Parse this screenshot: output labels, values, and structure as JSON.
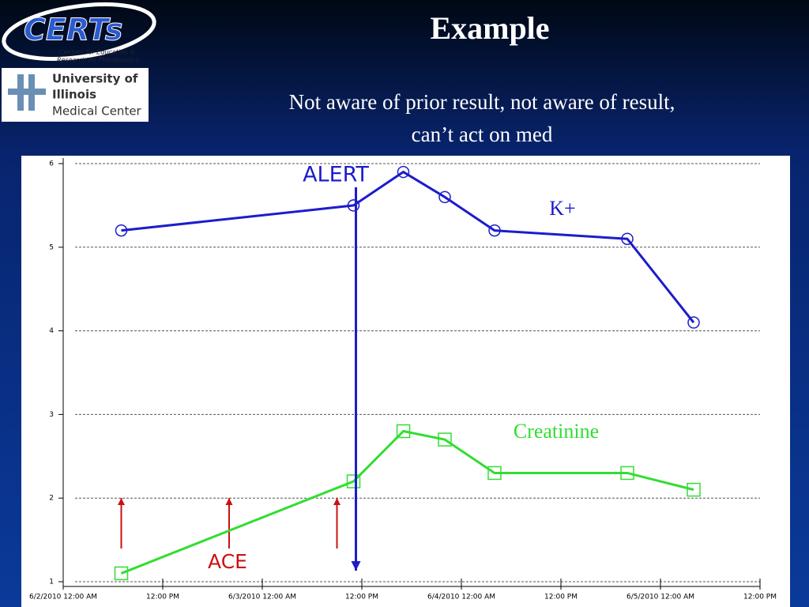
{
  "slide": {
    "title": "Example",
    "subtitle": [
      "Not aware of prior result, not aware of result,",
      "can’t act on med"
    ],
    "logo_certs": {
      "name": "CERTs",
      "tagline": [
        "Centers for Education &",
        "Research on Therapeutics"
      ]
    },
    "logo_illinois": [
      "University of",
      "Illinois",
      "Medical Center"
    ]
  },
  "chart_data": {
    "type": "line",
    "xlim": [
      "2010-06-02T00:00",
      "2010-06-05T12:00"
    ],
    "xticks": [
      {
        "value": "2010-06-02T00:00",
        "label": "6/2/2010 12:00 AM"
      },
      {
        "value": "2010-06-02T12:00",
        "label": "12:00 PM"
      },
      {
        "value": "2010-06-03T00:00",
        "label": "6/3/2010 12:00 AM"
      },
      {
        "value": "2010-06-03T12:00",
        "label": "12:00 PM"
      },
      {
        "value": "2010-06-04T00:00",
        "label": "6/4/2010 12:00 AM"
      },
      {
        "value": "2010-06-04T12:00",
        "label": "12:00 PM"
      },
      {
        "value": "2010-06-05T00:00",
        "label": "6/5/2010 12:00 AM"
      },
      {
        "value": "2010-06-05T12:00",
        "label": "12:00 PM"
      }
    ],
    "ylim": [
      1,
      6
    ],
    "yticks": [
      1,
      2,
      3,
      4,
      5,
      6
    ],
    "grid": true,
    "series": [
      {
        "name": "K+",
        "color": "#1c1ccc",
        "marker": "circle",
        "x": [
          "2010-06-02T07:00",
          "2010-06-03T11:00",
          "2010-06-03T17:00",
          "2010-06-03T22:00",
          "2010-06-04T04:00",
          "2010-06-04T20:00",
          "2010-06-05T04:00"
        ],
        "values": [
          5.2,
          5.5,
          5.9,
          5.6,
          5.2,
          5.1,
          4.1
        ]
      },
      {
        "name": "Creatinine",
        "color": "#33dd33",
        "marker": "square",
        "x": [
          "2010-06-02T07:00",
          "2010-06-03T11:00",
          "2010-06-03T17:00",
          "2010-06-03T22:00",
          "2010-06-04T04:00",
          "2010-06-04T20:00",
          "2010-06-05T04:00"
        ],
        "values": [
          1.1,
          2.2,
          2.8,
          2.7,
          2.3,
          2.3,
          2.1
        ]
      }
    ],
    "alert": {
      "text": "ALERT",
      "x": "2010-06-03T11:00",
      "color": "#1c1ccc"
    },
    "ace": {
      "text": "ACE",
      "x": [
        "2010-06-02T07:00",
        "2010-06-02T20:00",
        "2010-06-03T09:00"
      ],
      "color": "#cc1111"
    }
  }
}
